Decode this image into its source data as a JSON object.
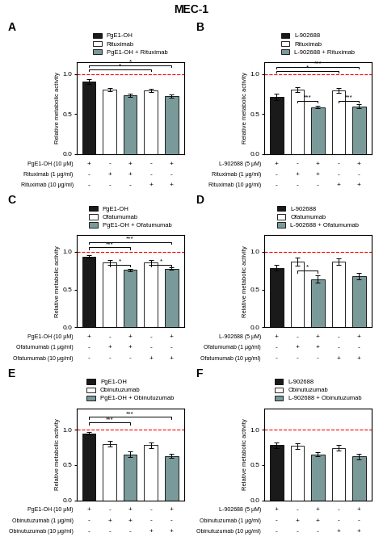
{
  "title": "MEC-1",
  "chart_data": [
    {
      "type": "bar",
      "title": "A",
      "categories": [
        null,
        null,
        null,
        null,
        null
      ],
      "ylabel": "Relative metabolic activity",
      "series": [
        {
          "name": "PgE1-OH",
          "color": "#1a1a1a",
          "values": [
            0.91,
            null,
            null,
            null,
            null
          ],
          "errors": [
            0.03,
            null,
            null,
            null,
            null
          ]
        },
        {
          "name": "Rituximab",
          "color": "#ffffff",
          "values": [
            null,
            0.81,
            null,
            0.8,
            null
          ],
          "errors": [
            null,
            0.02,
            null,
            0.02,
            null
          ]
        },
        {
          "name": "PgE1-OH + Rituximab",
          "color": "#7a9a9a",
          "values": [
            null,
            null,
            0.74,
            null,
            0.73
          ],
          "errors": [
            null,
            null,
            0.02,
            null,
            0.02
          ]
        }
      ],
      "ylim": [
        0.0,
        1.15
      ],
      "yticks": [
        {
          "value": 0.0,
          "label": "0.0"
        },
        {
          "value": 0.5,
          "label": "0.5"
        },
        {
          "value": 1.0,
          "label": "1.0"
        }
      ],
      "reference_line": {
        "value": 1.0,
        "color": "red",
        "line_style": "dashed"
      },
      "brackets": [
        {
          "from": 0,
          "to": 3,
          "y": 1.06,
          "label": "*"
        },
        {
          "from": 0,
          "to": 4,
          "y": 1.11,
          "label": "*"
        }
      ],
      "condition_rows": [
        {
          "name": "PgE1-OH (10 μM)",
          "marks": [
            "+",
            "-",
            "+",
            "-",
            "+"
          ]
        },
        {
          "name": "Rituximab (1 μg/ml)",
          "marks": [
            "-",
            "+",
            "+",
            "-",
            "-"
          ]
        },
        {
          "name": "Rituximab (10 μg/ml)",
          "marks": [
            "-",
            "-",
            "-",
            "+",
            "+"
          ]
        }
      ]
    },
    {
      "type": "bar",
      "title": "B",
      "categories": [
        null,
        null,
        null,
        null,
        null
      ],
      "ylabel": "Relative metabolic activity",
      "series": [
        {
          "name": "L-902688",
          "color": "#1a1a1a",
          "values": [
            0.72,
            null,
            null,
            null,
            null
          ],
          "errors": [
            0.04,
            null,
            null,
            null,
            null
          ]
        },
        {
          "name": "Rituximab",
          "color": "#ffffff",
          "values": [
            null,
            0.81,
            null,
            0.8,
            null
          ],
          "errors": [
            null,
            0.03,
            null,
            0.03,
            null
          ]
        },
        {
          "name": "L-902688 + Rituximab",
          "color": "#7a9a9a",
          "values": [
            null,
            null,
            0.59,
            null,
            0.6
          ],
          "errors": [
            null,
            null,
            0.02,
            null,
            0.03
          ]
        }
      ],
      "ylim": [
        0.0,
        1.15
      ],
      "yticks": [
        {
          "value": 0.0,
          "label": "0.0"
        },
        {
          "value": 0.5,
          "label": "0.5"
        },
        {
          "value": 1.0,
          "label": "1.0"
        }
      ],
      "reference_line": {
        "value": 1.0,
        "color": "red",
        "line_style": "dashed"
      },
      "brackets": [
        {
          "from": 0,
          "to": 3,
          "y": 1.04,
          "label": "*"
        },
        {
          "from": 0,
          "to": 4,
          "y": 1.09,
          "label": "***"
        },
        {
          "from": 1,
          "to": 2,
          "y": 0.67,
          "label": "***"
        },
        {
          "from": 3,
          "to": 4,
          "y": 0.67,
          "label": "***"
        }
      ],
      "condition_rows": [
        {
          "name": "L-902688 (5 μM)",
          "marks": [
            "+",
            "-",
            "+",
            "-",
            "+"
          ]
        },
        {
          "name": "Rituximab (1 μg/ml)",
          "marks": [
            "-",
            "+",
            "+",
            "-",
            "-"
          ]
        },
        {
          "name": "Rituximab (10 μg/ml)",
          "marks": [
            "-",
            "-",
            "-",
            "+",
            "+"
          ]
        }
      ]
    },
    {
      "type": "bar",
      "title": "C",
      "categories": [
        null,
        null,
        null,
        null,
        null
      ],
      "ylabel": "Relative metabolic activity",
      "series": [
        {
          "name": "PgE1-OH",
          "color": "#1a1a1a",
          "values": [
            0.94,
            null,
            null,
            null,
            null
          ],
          "errors": [
            0.02,
            null,
            null,
            null,
            null
          ]
        },
        {
          "name": "Ofatumumab",
          "color": "#ffffff",
          "values": [
            null,
            0.86,
            null,
            0.86,
            null
          ],
          "errors": [
            null,
            0.03,
            null,
            0.03,
            null
          ]
        },
        {
          "name": "PgE1-OH + Ofatumumab",
          "color": "#7a9a9a",
          "values": [
            null,
            null,
            0.76,
            null,
            0.78
          ],
          "errors": [
            null,
            null,
            0.02,
            null,
            0.02
          ]
        }
      ],
      "ylim": [
        0.0,
        1.22
      ],
      "yticks": [
        {
          "value": 0.0,
          "label": "0.0"
        },
        {
          "value": 0.5,
          "label": "0.5"
        },
        {
          "value": 1.0,
          "label": "1.0"
        }
      ],
      "reference_line": {
        "value": 1.0,
        "color": "red",
        "line_style": "dashed"
      },
      "brackets": [
        {
          "from": 1,
          "to": 2,
          "y": 0.83,
          "label": "*"
        },
        {
          "from": 3,
          "to": 4,
          "y": 0.83,
          "label": "*"
        },
        {
          "from": 0,
          "to": 2,
          "y": 1.06,
          "label": "***"
        },
        {
          "from": 0,
          "to": 4,
          "y": 1.13,
          "label": "***"
        }
      ],
      "condition_rows": [
        {
          "name": "PgE1-OH (10 μM)",
          "marks": [
            "+",
            "-",
            "+",
            "-",
            "+"
          ]
        },
        {
          "name": "Ofatumumab (1 μg/ml)",
          "marks": [
            "-",
            "+",
            "+",
            "-",
            "-"
          ]
        },
        {
          "name": "Ofatumumab (10 μg/ml)",
          "marks": [
            "-",
            "-",
            "-",
            "+",
            "+"
          ]
        }
      ]
    },
    {
      "type": "bar",
      "title": "D",
      "categories": [
        null,
        null,
        null,
        null,
        null
      ],
      "ylabel": "Relative metabolic activity",
      "series": [
        {
          "name": "L-902688",
          "color": "#1a1a1a",
          "values": [
            0.79,
            null,
            null,
            null,
            null
          ],
          "errors": [
            0.04,
            null,
            null,
            null,
            null
          ]
        },
        {
          "name": "Ofatumumab",
          "color": "#ffffff",
          "values": [
            null,
            0.87,
            null,
            0.87,
            null
          ],
          "errors": [
            null,
            0.05,
            null,
            0.04,
            null
          ]
        },
        {
          "name": "L-902688 + Ofatumumab",
          "color": "#7a9a9a",
          "values": [
            null,
            null,
            0.64,
            null,
            0.68
          ],
          "errors": [
            null,
            null,
            0.05,
            null,
            0.04
          ]
        }
      ],
      "ylim": [
        0.0,
        1.22
      ],
      "yticks": [
        {
          "value": 0.0,
          "label": "0.0"
        },
        {
          "value": 0.5,
          "label": "0.5"
        },
        {
          "value": 1.0,
          "label": "1.0"
        }
      ],
      "reference_line": {
        "value": 1.0,
        "color": "red",
        "line_style": "dashed"
      },
      "brackets": [
        {
          "from": 1,
          "to": 2,
          "y": 0.75,
          "label": "*"
        }
      ],
      "condition_rows": [
        {
          "name": "L-902688 (5 μM)",
          "marks": [
            "+",
            "-",
            "+",
            "-",
            "+"
          ]
        },
        {
          "name": "Ofatumumab (1 μg/ml)",
          "marks": [
            "-",
            "+",
            "+",
            "-",
            "-"
          ]
        },
        {
          "name": "Ofatumumab (10 μg/ml)",
          "marks": [
            "-",
            "-",
            "-",
            "+",
            "+"
          ]
        }
      ]
    },
    {
      "type": "bar",
      "title": "E",
      "categories": [
        null,
        null,
        null,
        null,
        null
      ],
      "ylabel": "Relative metabolic activity",
      "series": [
        {
          "name": "PgE1-OH",
          "color": "#1a1a1a",
          "values": [
            0.95,
            null,
            null,
            null,
            null
          ],
          "errors": [
            0.02,
            null,
            null,
            null,
            null
          ]
        },
        {
          "name": "Obinutuzumab",
          "color": "#ffffff",
          "values": [
            null,
            0.8,
            null,
            0.78,
            null
          ],
          "errors": [
            null,
            0.04,
            null,
            0.04,
            null
          ]
        },
        {
          "name": "PgE1-OH + Obinutuzumab",
          "color": "#7a9a9a",
          "values": [
            null,
            null,
            0.65,
            null,
            0.63
          ],
          "errors": [
            null,
            null,
            0.04,
            null,
            0.03
          ]
        }
      ],
      "ylim": [
        0.0,
        1.3
      ],
      "yticks": [
        {
          "value": 0.0,
          "label": "0.0"
        },
        {
          "value": 0.5,
          "label": "0.5"
        },
        {
          "value": 1.0,
          "label": "1.0"
        }
      ],
      "reference_line": {
        "value": 1.0,
        "color": "red",
        "line_style": "dashed"
      },
      "brackets": [
        {
          "from": 0,
          "to": 2,
          "y": 1.1,
          "label": "***"
        },
        {
          "from": 0,
          "to": 4,
          "y": 1.18,
          "label": "***"
        }
      ],
      "condition_rows": [
        {
          "name": "PgE1-OH (10 μM)",
          "marks": [
            "+",
            "-",
            "+",
            "-",
            "+"
          ]
        },
        {
          "name": "Obinutuzumab (1 μg/ml)",
          "marks": [
            "-",
            "+",
            "+",
            "-",
            "-"
          ]
        },
        {
          "name": "Obinutuzumab (10 μg/ml)",
          "marks": [
            "-",
            "-",
            "-",
            "+",
            "+"
          ]
        }
      ]
    },
    {
      "type": "bar",
      "title": "F",
      "categories": [
        null,
        null,
        null,
        null,
        null
      ],
      "ylabel": "Relative metabolic activity",
      "series": [
        {
          "name": "L-902688",
          "color": "#1a1a1a",
          "values": [
            0.78,
            null,
            null,
            null,
            null
          ],
          "errors": [
            0.04,
            null,
            null,
            null,
            null
          ]
        },
        {
          "name": "Obinutuzumab",
          "color": "#ffffff",
          "values": [
            null,
            0.77,
            null,
            0.74,
            null
          ],
          "errors": [
            null,
            0.04,
            null,
            0.04,
            null
          ]
        },
        {
          "name": "L-902688 + Obinutuzumab",
          "color": "#7a9a9a",
          "values": [
            null,
            null,
            0.65,
            null,
            0.62
          ],
          "errors": [
            null,
            null,
            0.03,
            null,
            0.04
          ]
        }
      ],
      "ylim": [
        0.0,
        1.3
      ],
      "yticks": [
        {
          "value": 0.0,
          "label": "0.0"
        },
        {
          "value": 0.5,
          "label": "0.5"
        },
        {
          "value": 1.0,
          "label": "1.0"
        }
      ],
      "reference_line": {
        "value": 1.0,
        "color": "red",
        "line_style": "dashed"
      },
      "brackets": [],
      "condition_rows": [
        {
          "name": "L-902688 (5 μM)",
          "marks": [
            "+",
            "-",
            "+",
            "-",
            "+"
          ]
        },
        {
          "name": "Obinutuzumab (1 μg/ml)",
          "marks": [
            "-",
            "+",
            "+",
            "-",
            "-"
          ]
        },
        {
          "name": "Obinutuzumab (10 μg/ml)",
          "marks": [
            "-",
            "-",
            "-",
            "+",
            "+"
          ]
        }
      ]
    }
  ]
}
